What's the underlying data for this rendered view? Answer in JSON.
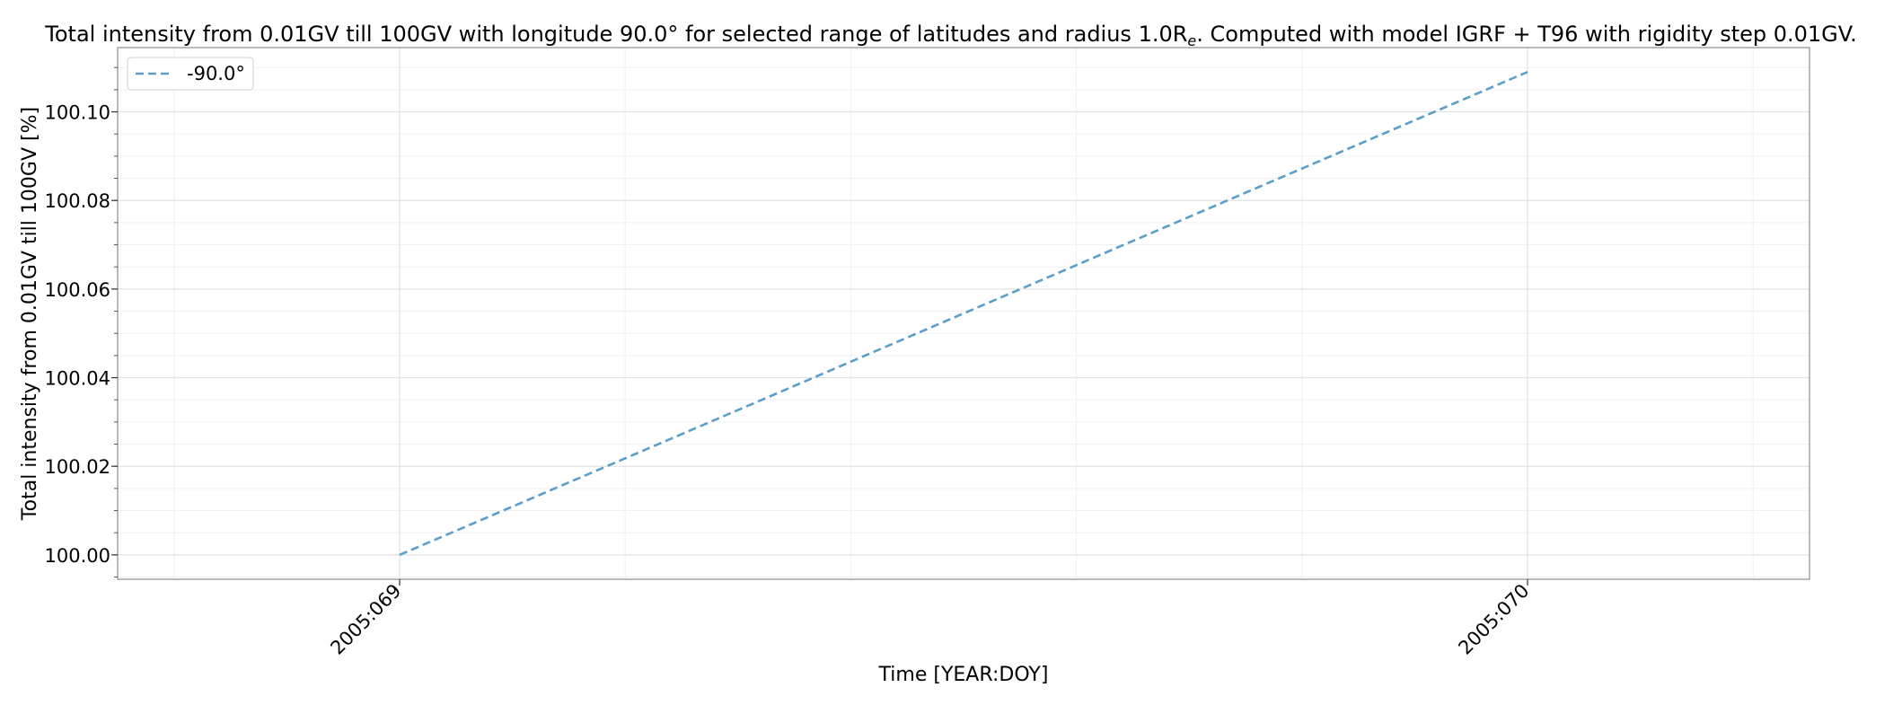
{
  "chart_data": {
    "type": "line",
    "title": "Total intensity from 0.01GV till 100GV with longitude 90.0° for selected range of latitudes and radius 1.0R",
    "title_subscript": "e",
    "title_suffix": ". Computed with model IGRF + T96 with rigidity step 0.01GV.",
    "xlabel": "Time [YEAR:DOY]",
    "ylabel": "Total intensity from 0.01GV till 100GV [%]",
    "x_ticks": [
      "2005:069",
      "2005:070"
    ],
    "y_ticks": [
      "100.00",
      "100.02",
      "100.04",
      "100.06",
      "100.08",
      "100.10"
    ],
    "ylim": [
      99.9945,
      100.1145
    ],
    "y_tick_values": [
      100.0,
      100.02,
      100.04,
      100.06,
      100.08,
      100.1
    ],
    "x_tick_values": [
      2005.069,
      2005.07
    ],
    "x_range": [
      2005.06875,
      2005.07025
    ],
    "grid": true,
    "legend_position": "upper left",
    "series": [
      {
        "name": "-90.0°",
        "color": "#5b9ec9",
        "style": "dashed",
        "x": [
          "2005:069",
          "2005:070"
        ],
        "x_values": [
          2005.069,
          2005.07
        ],
        "values": [
          100.0,
          100.109
        ]
      }
    ]
  }
}
